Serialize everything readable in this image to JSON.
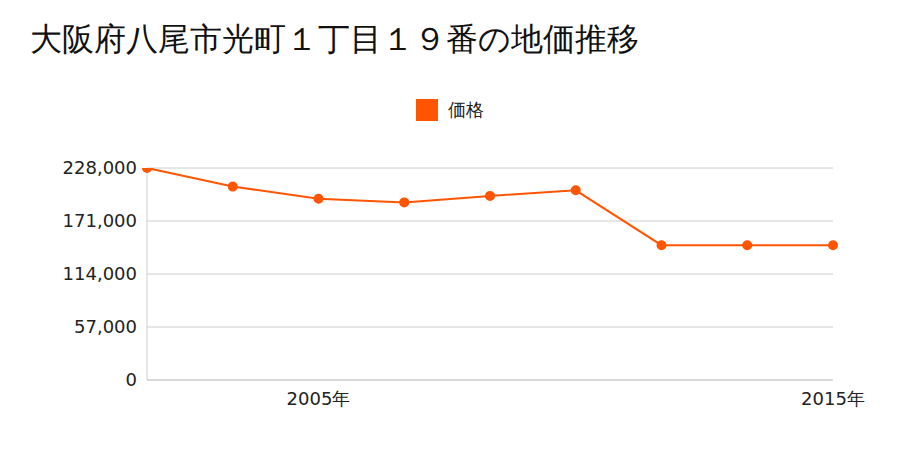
{
  "chart_data": {
    "type": "line",
    "title": "大阪府八尾市光町１丁目１９番の地価推移",
    "categories": [
      null,
      null,
      "2005年",
      null,
      null,
      null,
      null,
      null,
      "2015年"
    ],
    "series": [
      {
        "name": "価格",
        "color": "#ff5500",
        "values": [
          228000,
          208000,
          195000,
          191000,
          198000,
          204000,
          145000,
          145000,
          145000
        ]
      }
    ],
    "ylim": [
      0,
      228000
    ],
    "yticks": [
      0,
      {
        "value": 57000,
        "label": "57,000"
      },
      {
        "value": 114000,
        "label": "114,000"
      },
      {
        "value": 171000,
        "label": "171,000"
      },
      {
        "value": 228000,
        "label": "228,000"
      }
    ],
    "grid": true,
    "legend": "top"
  }
}
